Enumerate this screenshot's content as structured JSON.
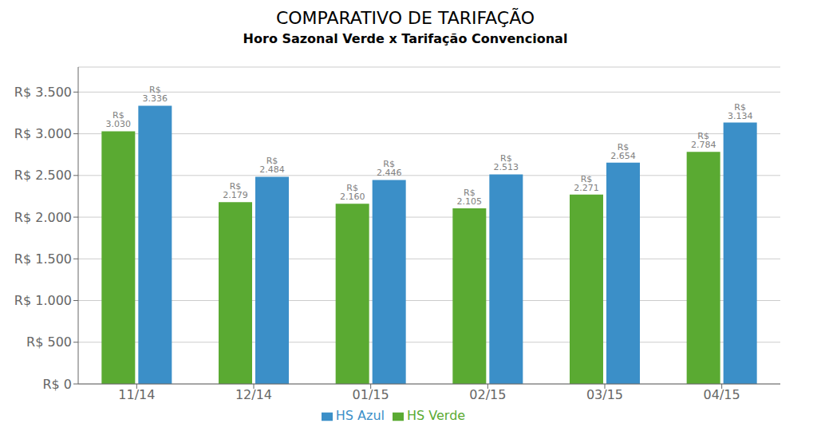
{
  "chart_data": {
    "type": "bar",
    "title": "COMPARATIVO DE TARIFAÇÃO",
    "subtitle": "Horo Sazonal Verde x Tarifação Convencional",
    "categories": [
      "11/14",
      "12/14",
      "01/15",
      "02/15",
      "03/15",
      "04/15"
    ],
    "series": [
      {
        "name": "HS Verde",
        "color": "#5aaa32",
        "values": [
          3030,
          2179,
          2160,
          2105,
          2271,
          2784
        ],
        "value_labels": [
          "R$ 3.030",
          "R$ 2.179",
          "R$ 2.160",
          "R$ 2.105",
          "R$ 2.271",
          "R$ 2.784"
        ]
      },
      {
        "name": "HS Azul",
        "color": "#3b8fc8",
        "values": [
          3336,
          2484,
          2446,
          2513,
          2654,
          3134
        ],
        "value_labels": [
          "R$ 3.336",
          "R$ 2.484",
          "R$ 2.446",
          "R$ 2.513",
          "R$ 2.654",
          "R$ 3.134"
        ]
      }
    ],
    "ylim": [
      0,
      3800
    ],
    "yticks": [
      {
        "value": 0,
        "label": "R$ 0"
      },
      {
        "value": 500,
        "label": "R$ 500"
      },
      {
        "value": 1000,
        "label": "R$ 1.000"
      },
      {
        "value": 1500,
        "label": "R$ 1.500"
      },
      {
        "value": 2000,
        "label": "R$ 2.000"
      },
      {
        "value": 2500,
        "label": "R$ 2.500"
      },
      {
        "value": 3000,
        "label": "R$ 3.000"
      },
      {
        "value": 3500,
        "label": "R$ 3.500"
      }
    ],
    "grid": true,
    "data_labels": true,
    "legend": "bottom"
  }
}
